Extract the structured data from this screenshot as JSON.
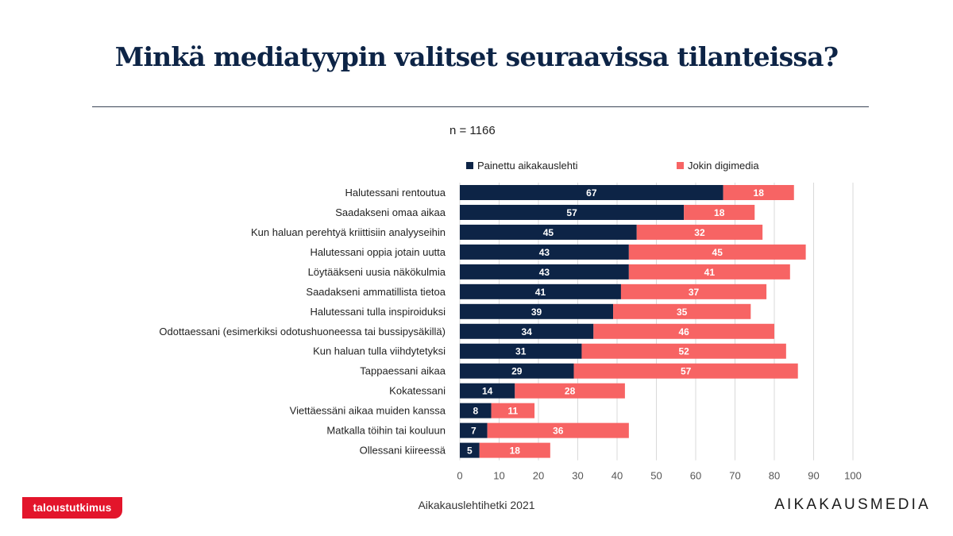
{
  "header": {
    "title": "Minkä mediatyypin valitset seuraavissa tilanteissa?",
    "sample_size": "n = 1166"
  },
  "footer": {
    "source": "Aikakauslehtihetki 2021",
    "brand_left": "taloustutkimus",
    "brand_right": "AIKAKAUSMEDIA"
  },
  "colors": {
    "printed": "#0d2446",
    "digital": "#f76464",
    "grid": "#d9d9d9"
  },
  "chart_data": {
    "type": "bar",
    "orientation": "horizontal",
    "stacked": true,
    "categories": [
      "Halutessani rentoutua",
      "Saadakseni omaa aikaa",
      "Kun haluan perehtyä kriittisiin analyyseihin",
      "Halutessani oppia jotain uutta",
      "Löytääkseni uusia näkökulmia",
      "Saadakseni ammatillista tietoa",
      "Halutessani tulla inspiroiduksi",
      "Odottaessani (esimerkiksi odotushuoneessa tai bussipysäkillä)",
      "Kun haluan tulla viihdytetyksi",
      "Tappaessani aikaa",
      "Kokatessani",
      "Viettäessäni aikaa muiden kanssa",
      "Matkalla töihin tai kouluun",
      "Ollessani kiireessä"
    ],
    "series": [
      {
        "name": "Painettu aikakauslehti",
        "values": [
          67,
          57,
          45,
          43,
          43,
          41,
          39,
          34,
          31,
          29,
          14,
          8,
          7,
          5
        ]
      },
      {
        "name": "Jokin digimedia",
        "values": [
          18,
          18,
          32,
          45,
          41,
          37,
          35,
          46,
          52,
          57,
          28,
          11,
          36,
          18
        ]
      }
    ],
    "xlim": [
      0,
      100
    ],
    "xticks": [
      "0",
      "10",
      "20",
      "30",
      "40",
      "50",
      "60",
      "70",
      "80",
      "90",
      "100"
    ],
    "grid": true,
    "legend": "top"
  }
}
